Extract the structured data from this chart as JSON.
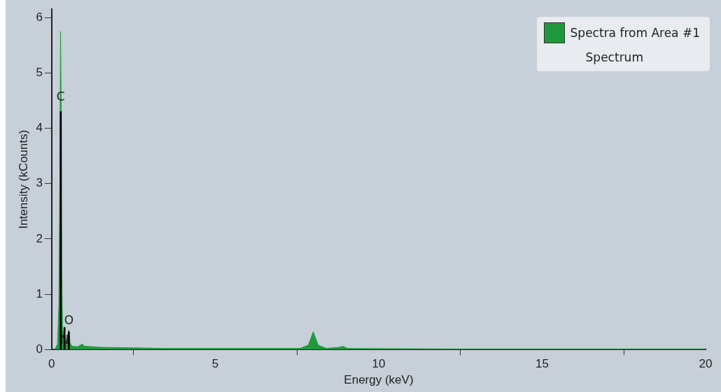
{
  "chart_data": {
    "type": "area",
    "xlabel": "Energy (keV)",
    "ylabel": "Intensity (kCounts)",
    "legend_title": "Spectrum",
    "legend": "top right",
    "grid": false,
    "xlim": [
      0,
      20
    ],
    "xticks": [
      0,
      5,
      10,
      15,
      20
    ],
    "ylim": [
      0,
      6.15
    ],
    "yticks": [
      0,
      1,
      2,
      3,
      4,
      5,
      6
    ],
    "series": [
      {
        "name": "Spectra from Area #1",
        "color": "#1e9a3c",
        "x": [
          0,
          0.1,
          0.18,
          0.22,
          0.25,
          0.27,
          0.29,
          0.31,
          0.33,
          0.36,
          0.39,
          0.43,
          0.47,
          0.52,
          0.56,
          0.62,
          0.8,
          0.93,
          1.0,
          1.5,
          2.5,
          3.5,
          5,
          7.6,
          7.85,
          8.0,
          8.15,
          8.4,
          8.8,
          8.9,
          9.05,
          12,
          20
        ],
        "values": [
          0,
          0,
          0.1,
          0.8,
          3.0,
          5.75,
          4.5,
          1.5,
          0.4,
          0.25,
          0.28,
          0.2,
          0.15,
          0.35,
          0.12,
          0.06,
          0.05,
          0.1,
          0.06,
          0.04,
          0.03,
          0.02,
          0.02,
          0.02,
          0.08,
          0.32,
          0.08,
          0.02,
          0.04,
          0.06,
          0.02,
          0.01,
          0.01
        ]
      },
      {
        "type": "bar",
        "color": "#000000",
        "x": [
          0.277,
          0.392,
          0.525
        ],
        "values": [
          4.3,
          0.4,
          0.32
        ]
      }
    ],
    "annotations": [
      {
        "text": "C",
        "x": 0.277,
        "y": 4.45
      },
      {
        "text": "N",
        "x": 0.392,
        "y": 0.05
      },
      {
        "text": "O",
        "x": 0.525,
        "y": 0.4
      }
    ]
  }
}
